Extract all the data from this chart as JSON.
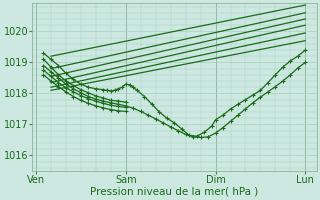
{
  "bg_color": "#cce8e0",
  "grid_color": "#aacfbf",
  "line_color": "#1a6b1a",
  "marker_color": "#1a6b1a",
  "xlabel": "Pression niveau de la mer( hPa )",
  "xtick_labels": [
    "Ven",
    "Sam",
    "Dim",
    "Lun"
  ],
  "xtick_positions": [
    0,
    48,
    96,
    144
  ],
  "ylim": [
    1015.5,
    1020.9
  ],
  "yticks": [
    1016,
    1017,
    1018,
    1019,
    1020
  ],
  "xlim": [
    -2,
    150
  ],
  "straight_lines": [
    {
      "x": [
        8,
        144
      ],
      "y": [
        1019.2,
        1020.85
      ]
    },
    {
      "x": [
        8,
        144
      ],
      "y": [
        1018.8,
        1020.6
      ]
    },
    {
      "x": [
        8,
        144
      ],
      "y": [
        1018.55,
        1020.4
      ]
    },
    {
      "x": [
        8,
        144
      ],
      "y": [
        1018.35,
        1020.2
      ]
    },
    {
      "x": [
        8,
        144
      ],
      "y": [
        1018.2,
        1019.95
      ]
    },
    {
      "x": [
        8,
        144
      ],
      "y": [
        1018.1,
        1019.7
      ]
    }
  ],
  "detail_series": [
    {
      "x": [
        4,
        8,
        12,
        16,
        20,
        24,
        28,
        32,
        36,
        38,
        40,
        42,
        44,
        46,
        48,
        50,
        52,
        54,
        58,
        62,
        66,
        70,
        74,
        78,
        82,
        86,
        90,
        94,
        96,
        100,
        104,
        108,
        112,
        116,
        120,
        124,
        128,
        132,
        136,
        140,
        144
      ],
      "y": [
        1019.3,
        1019.1,
        1018.9,
        1018.65,
        1018.45,
        1018.3,
        1018.2,
        1018.15,
        1018.12,
        1018.1,
        1018.08,
        1018.1,
        1018.15,
        1018.2,
        1018.3,
        1018.28,
        1018.2,
        1018.1,
        1017.9,
        1017.65,
        1017.4,
        1017.2,
        1017.05,
        1016.85,
        1016.65,
        1016.62,
        1016.75,
        1016.95,
        1017.15,
        1017.3,
        1017.5,
        1017.65,
        1017.8,
        1017.95,
        1018.1,
        1018.35,
        1018.6,
        1018.85,
        1019.05,
        1019.2,
        1019.4
      ]
    },
    {
      "x": [
        4,
        8,
        12,
        16,
        20,
        24,
        28,
        32,
        36,
        40,
        44,
        48,
        52,
        56,
        60,
        64,
        68,
        72,
        76,
        80,
        84,
        88,
        92,
        96,
        100,
        104,
        108,
        112,
        116,
        120,
        124,
        128,
        132,
        136,
        140,
        144
      ],
      "y": [
        1018.9,
        1018.7,
        1018.5,
        1018.3,
        1018.15,
        1018.02,
        1017.9,
        1017.82,
        1017.75,
        1017.7,
        1017.65,
        1017.6,
        1017.52,
        1017.42,
        1017.3,
        1017.18,
        1017.05,
        1016.92,
        1016.8,
        1016.68,
        1016.6,
        1016.58,
        1016.6,
        1016.72,
        1016.9,
        1017.1,
        1017.3,
        1017.5,
        1017.7,
        1017.88,
        1018.05,
        1018.22,
        1018.4,
        1018.6,
        1018.82,
        1019.0
      ]
    }
  ],
  "short_series": [
    {
      "x": [
        4,
        8,
        12,
        16,
        20,
        24,
        28,
        32,
        36,
        40,
        44,
        48
      ],
      "y": [
        1019.1,
        1018.85,
        1018.6,
        1018.4,
        1018.25,
        1018.12,
        1018.02,
        1017.92,
        1017.85,
        1017.78,
        1017.75,
        1017.72
      ]
    },
    {
      "x": [
        4,
        8,
        12,
        16,
        20,
        24,
        28,
        32,
        36,
        40,
        44,
        48
      ],
      "y": [
        1018.75,
        1018.55,
        1018.35,
        1018.18,
        1018.05,
        1017.93,
        1017.83,
        1017.75,
        1017.68,
        1017.62,
        1017.58,
        1017.55
      ]
    },
    {
      "x": [
        4,
        8,
        12,
        16,
        20,
        24,
        28,
        32,
        36,
        40,
        44,
        48
      ],
      "y": [
        1018.6,
        1018.4,
        1018.22,
        1018.05,
        1017.9,
        1017.78,
        1017.68,
        1017.6,
        1017.53,
        1017.48,
        1017.44,
        1017.42
      ]
    }
  ]
}
